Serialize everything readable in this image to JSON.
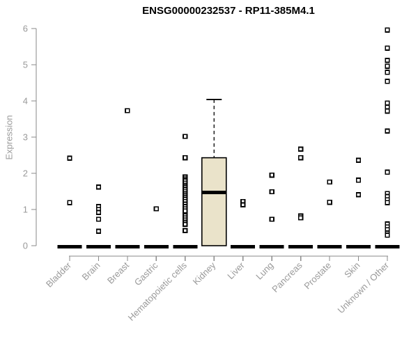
{
  "chart_data": {
    "type": "boxplot",
    "title": "ENSG00000232537 - RP11-385M4.1",
    "ylabel": "Expression",
    "xlabel": "",
    "ylim": [
      0,
      6
    ],
    "yticks": [
      0,
      1,
      2,
      3,
      4,
      5,
      6
    ],
    "grid": false,
    "legend": null,
    "point_marker": "open-square",
    "categories": [
      "Bladder",
      "Brain",
      "Breast",
      "Gastric",
      "Hematopoietic cells",
      "Kidney",
      "Liver",
      "Lung",
      "Pancreas",
      "Prostate",
      "Skin",
      "Unknown / Other"
    ],
    "series": [
      {
        "label": "Bladder",
        "box": {
          "q1": 0,
          "median": 0,
          "q3": 0,
          "whisker_low": 0,
          "whisker_high": 0
        },
        "points": [
          2.42,
          1.19
        ]
      },
      {
        "label": "Brain",
        "box": {
          "q1": 0,
          "median": 0,
          "q3": 0,
          "whisker_low": 0,
          "whisker_high": 0
        },
        "points": [
          1.62,
          1.08,
          1.0,
          0.92,
          0.73,
          0.4
        ]
      },
      {
        "label": "Breast",
        "box": {
          "q1": 0,
          "median": 0,
          "q3": 0,
          "whisker_low": 0,
          "whisker_high": 0
        },
        "points": [
          3.73
        ]
      },
      {
        "label": "Gastric",
        "box": {
          "q1": 0,
          "median": 0,
          "q3": 0,
          "whisker_low": 0,
          "whisker_high": 0
        },
        "points": [
          1.02
        ]
      },
      {
        "label": "Hematopoietic cells",
        "box": {
          "q1": 0,
          "median": 0,
          "q3": 0,
          "whisker_low": 0,
          "whisker_high": 0
        },
        "points": [
          3.02,
          2.43,
          1.9,
          1.84,
          1.79,
          1.73,
          1.67,
          1.62,
          1.56,
          1.51,
          1.45,
          1.4,
          1.34,
          1.28,
          1.22,
          1.15,
          1.08,
          1.02,
          0.96,
          0.83,
          0.77,
          0.71,
          0.65,
          0.59,
          0.42
        ]
      },
      {
        "label": "Kidney",
        "box": {
          "q1": 0,
          "median": 1.47,
          "q3": 2.43,
          "whisker_low": 0,
          "whisker_high": 4.04
        },
        "points": []
      },
      {
        "label": "Liver",
        "box": {
          "q1": 0,
          "median": 0,
          "q3": 0,
          "whisker_low": 0,
          "whisker_high": 0
        },
        "points": [
          1.22,
          1.13
        ]
      },
      {
        "label": "Lung",
        "box": {
          "q1": 0,
          "median": 0,
          "q3": 0,
          "whisker_low": 0,
          "whisker_high": 0
        },
        "points": [
          1.95,
          1.49,
          0.73
        ]
      },
      {
        "label": "Pancreas",
        "box": {
          "q1": 0,
          "median": 0,
          "q3": 0,
          "whisker_low": 0,
          "whisker_high": 0
        },
        "points": [
          2.67,
          2.43,
          0.82,
          0.77
        ]
      },
      {
        "label": "Prostate",
        "box": {
          "q1": 0,
          "median": 0,
          "q3": 0,
          "whisker_low": 0,
          "whisker_high": 0
        },
        "points": [
          1.76,
          1.2
        ]
      },
      {
        "label": "Skin",
        "box": {
          "q1": 0,
          "median": 0,
          "q3": 0,
          "whisker_low": 0,
          "whisker_high": 0
        },
        "points": [
          2.36,
          1.81,
          1.41
        ]
      },
      {
        "label": "Unknown / Other",
        "box": {
          "q1": 0,
          "median": 0,
          "q3": 0,
          "whisker_low": 0,
          "whisker_high": 0
        },
        "points": [
          5.96,
          5.46,
          5.12,
          4.96,
          4.79,
          4.54,
          3.94,
          3.83,
          3.72,
          3.17,
          2.03,
          1.44,
          1.36,
          1.27,
          1.19,
          0.6,
          0.52,
          0.44,
          0.35,
          0.29
        ]
      }
    ],
    "colors": {
      "box_fill": "#eae3ca",
      "box_border": "#000000",
      "point": "#000000",
      "axis": "#8a8a8a",
      "tick_label": "#9a9a9a",
      "title": "#000000",
      "background": "#ffffff"
    }
  }
}
